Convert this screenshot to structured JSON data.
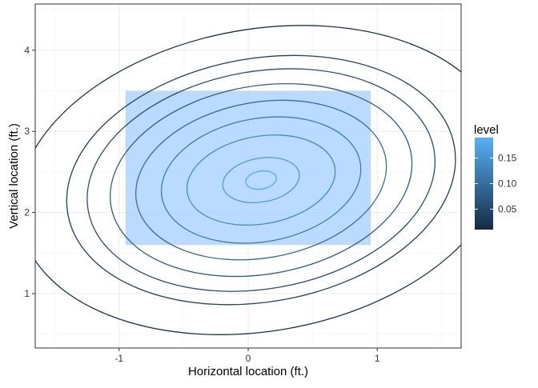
{
  "chart_data": {
    "type": "contour",
    "xlabel": "Horizontal location (ft.)",
    "ylabel": "Vertical location (ft.)",
    "xlim": [
      -1.65,
      1.65
    ],
    "ylim": [
      0.33,
      4.57
    ],
    "x_ticks": [
      -1,
      0,
      1
    ],
    "x_tick_labels": [
      "-1",
      "0",
      "1"
    ],
    "y_ticks": [
      1,
      2,
      3,
      4
    ],
    "y_tick_labels": [
      "1",
      "2",
      "3",
      "4"
    ],
    "grid": true,
    "legend": {
      "title": "level",
      "position": "right",
      "ticks": [
        0.05,
        0.1,
        0.15
      ],
      "tick_labels": [
        "0.05",
        "0.10",
        "0.15"
      ],
      "range": [
        0.01,
        0.19
      ],
      "color_low": "#132B43",
      "color_high": "#56B1F7"
    },
    "strike_zone": {
      "x_range": [
        -0.95,
        0.95
      ],
      "y_range": [
        1.6,
        3.5
      ],
      "fill": "#9ECAFF",
      "opacity": 0.7
    },
    "contours": {
      "center": [
        0.1,
        2.4
      ],
      "levels": [
        0.02,
        0.04,
        0.06,
        0.08,
        0.1,
        0.12,
        0.14,
        0.16,
        0.18
      ],
      "semi_axis_x": [
        1.9,
        1.52,
        1.36,
        1.18,
        0.98,
        0.78,
        0.58,
        0.3,
        0.12
      ],
      "semi_axis_y": [
        1.86,
        1.5,
        1.34,
        1.16,
        0.96,
        0.76,
        0.54,
        0.27,
        0.11
      ],
      "rotation_deg": -10
    }
  }
}
